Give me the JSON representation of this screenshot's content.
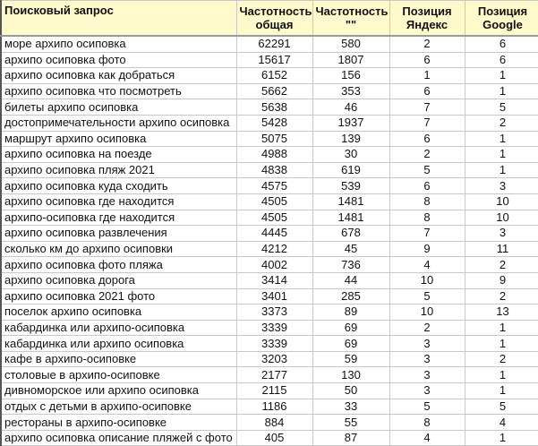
{
  "headers": [
    "Поисковый запрос",
    "Частотность общая",
    "Частотность \"\"",
    "Позиция Яндекс",
    "Позиция Google"
  ],
  "header_lines": [
    [
      "Поисковый запрос"
    ],
    [
      "Частотность",
      "общая"
    ],
    [
      "Частотность",
      "\"\""
    ],
    [
      "Позиция",
      "Яндекс"
    ],
    [
      "Позиция",
      "Google"
    ]
  ],
  "rows": [
    [
      "море архипо осиповка",
      "62291",
      "580",
      "2",
      "6"
    ],
    [
      "архипо осиповка фото",
      "15617",
      "1807",
      "6",
      "6"
    ],
    [
      "архипо осиповка как добраться",
      "6152",
      "156",
      "1",
      "1"
    ],
    [
      "архипо осиповка что посмотреть",
      "5662",
      "353",
      "6",
      "1"
    ],
    [
      "билеты архипо осиповка",
      "5638",
      "46",
      "7",
      "5"
    ],
    [
      "достопримечательности архипо осиповка",
      "5428",
      "1937",
      "7",
      "2"
    ],
    [
      "маршрут архипо осиповка",
      "5075",
      "139",
      "6",
      "1"
    ],
    [
      "архипо осиповка на поезде",
      "4988",
      "30",
      "2",
      "1"
    ],
    [
      "архипо осиповка пляж 2021",
      "4838",
      "619",
      "5",
      "1"
    ],
    [
      "архипо осиповка куда сходить",
      "4575",
      "539",
      "6",
      "3"
    ],
    [
      "архипо осиповка где находится",
      "4505",
      "1481",
      "8",
      "10"
    ],
    [
      "архипо-осиповка где находится",
      "4505",
      "1481",
      "8",
      "10"
    ],
    [
      "архипо осиповка развлечения",
      "4445",
      "678",
      "7",
      "3"
    ],
    [
      "сколько км до архипо осиповки",
      "4212",
      "45",
      "9",
      "11"
    ],
    [
      "архипо осиповка фото пляжа",
      "4002",
      "736",
      "4",
      "2"
    ],
    [
      "архипо осиповка дорога",
      "3414",
      "44",
      "10",
      "9"
    ],
    [
      "архипо осиповка 2021 фото",
      "3401",
      "285",
      "5",
      "2"
    ],
    [
      "поселок архипо осиповка",
      "3373",
      "89",
      "10",
      "13"
    ],
    [
      "кабардинка или архипо-осиповка",
      "3339",
      "69",
      "2",
      "1"
    ],
    [
      "кабардинка или архипо осиповка",
      "3339",
      "69",
      "3",
      "1"
    ],
    [
      "кафе в архипо-осиповке",
      "3203",
      "59",
      "3",
      "2"
    ],
    [
      "столовые в архипо-осиповке",
      "2177",
      "130",
      "3",
      "1"
    ],
    [
      "дивноморское или архипо осиповка",
      "2115",
      "50",
      "3",
      "1"
    ],
    [
      "отдых с детьми в архипо-осиповке",
      "1186",
      "33",
      "5",
      "5"
    ],
    [
      "рестораны в архипо-осиповке",
      "884",
      "55",
      "8",
      "4"
    ],
    [
      "архипо осиповка описание пляжей с фото",
      "405",
      "87",
      "4",
      "1"
    ]
  ]
}
